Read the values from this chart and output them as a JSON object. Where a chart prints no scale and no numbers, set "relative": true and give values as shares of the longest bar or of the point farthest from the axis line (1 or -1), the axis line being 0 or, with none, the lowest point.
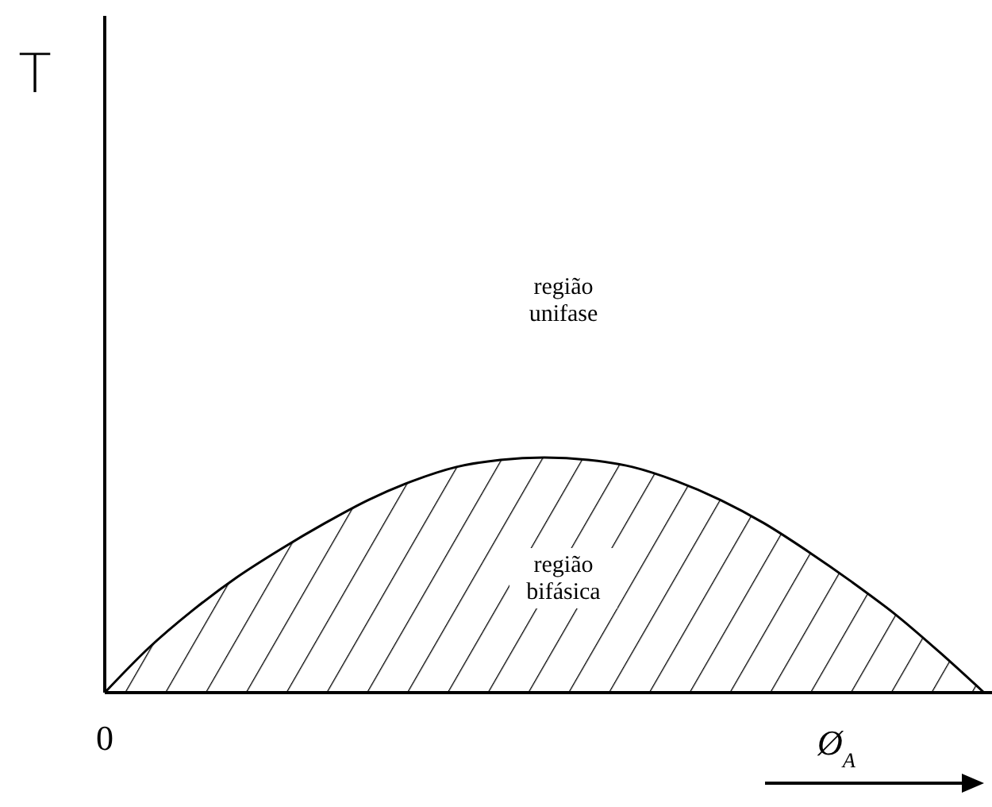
{
  "chart_data": {
    "type": "area",
    "relative": true,
    "xlabel": "Ø$_{A}$",
    "categories": [
      null,
      null,
      null,
      null,
      null,
      null,
      null,
      null,
      null,
      null,
      null,
      null,
      null,
      null,
      null,
      null,
      null,
      null,
      null,
      null,
      null
    ],
    "series": [
      {
        "color": "#000000",
        "values": [
          0,
          0.19,
          0.35,
          0.49,
          0.61,
          0.72,
          0.82,
          0.9,
          0.96,
          0.99,
          1.0,
          0.99,
          0.96,
          0.9,
          0.82,
          0.72,
          0.6,
          0.47,
          0.33,
          0.17,
          0
        ]
      }
    ],
    "annotations": [
      "região\nunifase",
      "região\nbifásica",
      "0",
      "T"
    ]
  }
}
